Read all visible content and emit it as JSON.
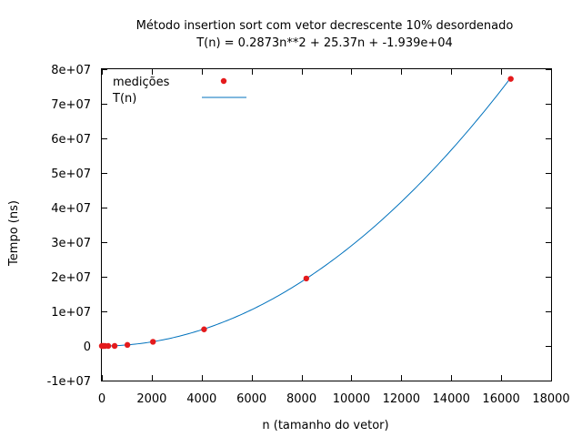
{
  "chart_data": {
    "type": "scatter",
    "title": "Método insertion sort com vetor decrescente 10% desordenado",
    "subtitle": "T(n) = 0.2873n**2 + 25.37n + -1.939e+04",
    "xlabel": "n (tamanho do vetor)",
    "ylabel": "Tempo (ns)",
    "xlim": [
      0,
      18000
    ],
    "ylim": [
      -10000000,
      80000000
    ],
    "x_ticks": [
      0,
      2000,
      4000,
      6000,
      8000,
      10000,
      12000,
      14000,
      16000,
      18000
    ],
    "x_tick_labels": [
      "0",
      "2000",
      "4000",
      "6000",
      "8000",
      "10000",
      "12000",
      "14000",
      "16000",
      "18000"
    ],
    "y_ticks": [
      -10000000,
      0,
      10000000,
      20000000,
      30000000,
      40000000,
      50000000,
      60000000,
      70000000,
      80000000
    ],
    "y_tick_labels": [
      "-1e+07",
      "0",
      "1e+07",
      "2e+07",
      "3e+07",
      "4e+07",
      "5e+07",
      "6e+07",
      "7e+07",
      "8e+07"
    ],
    "grid": false,
    "legend_position": "top-left",
    "series": [
      {
        "name": "medições",
        "kind": "points",
        "color": "#e41a1c",
        "x": [
          0,
          32,
          64,
          128,
          256,
          512,
          1024,
          2048,
          4096,
          8192,
          16384
        ],
        "y": [
          0,
          0,
          0,
          0,
          0,
          0,
          300000,
          1200000,
          4800000,
          19500000,
          77200000
        ]
      },
      {
        "name": "T(n)",
        "kind": "line",
        "color": "#0072bd",
        "coefficients": {
          "a": 0.2873,
          "b": 25.37,
          "c": -19390
        },
        "x_range": [
          0,
          16384
        ]
      }
    ]
  }
}
